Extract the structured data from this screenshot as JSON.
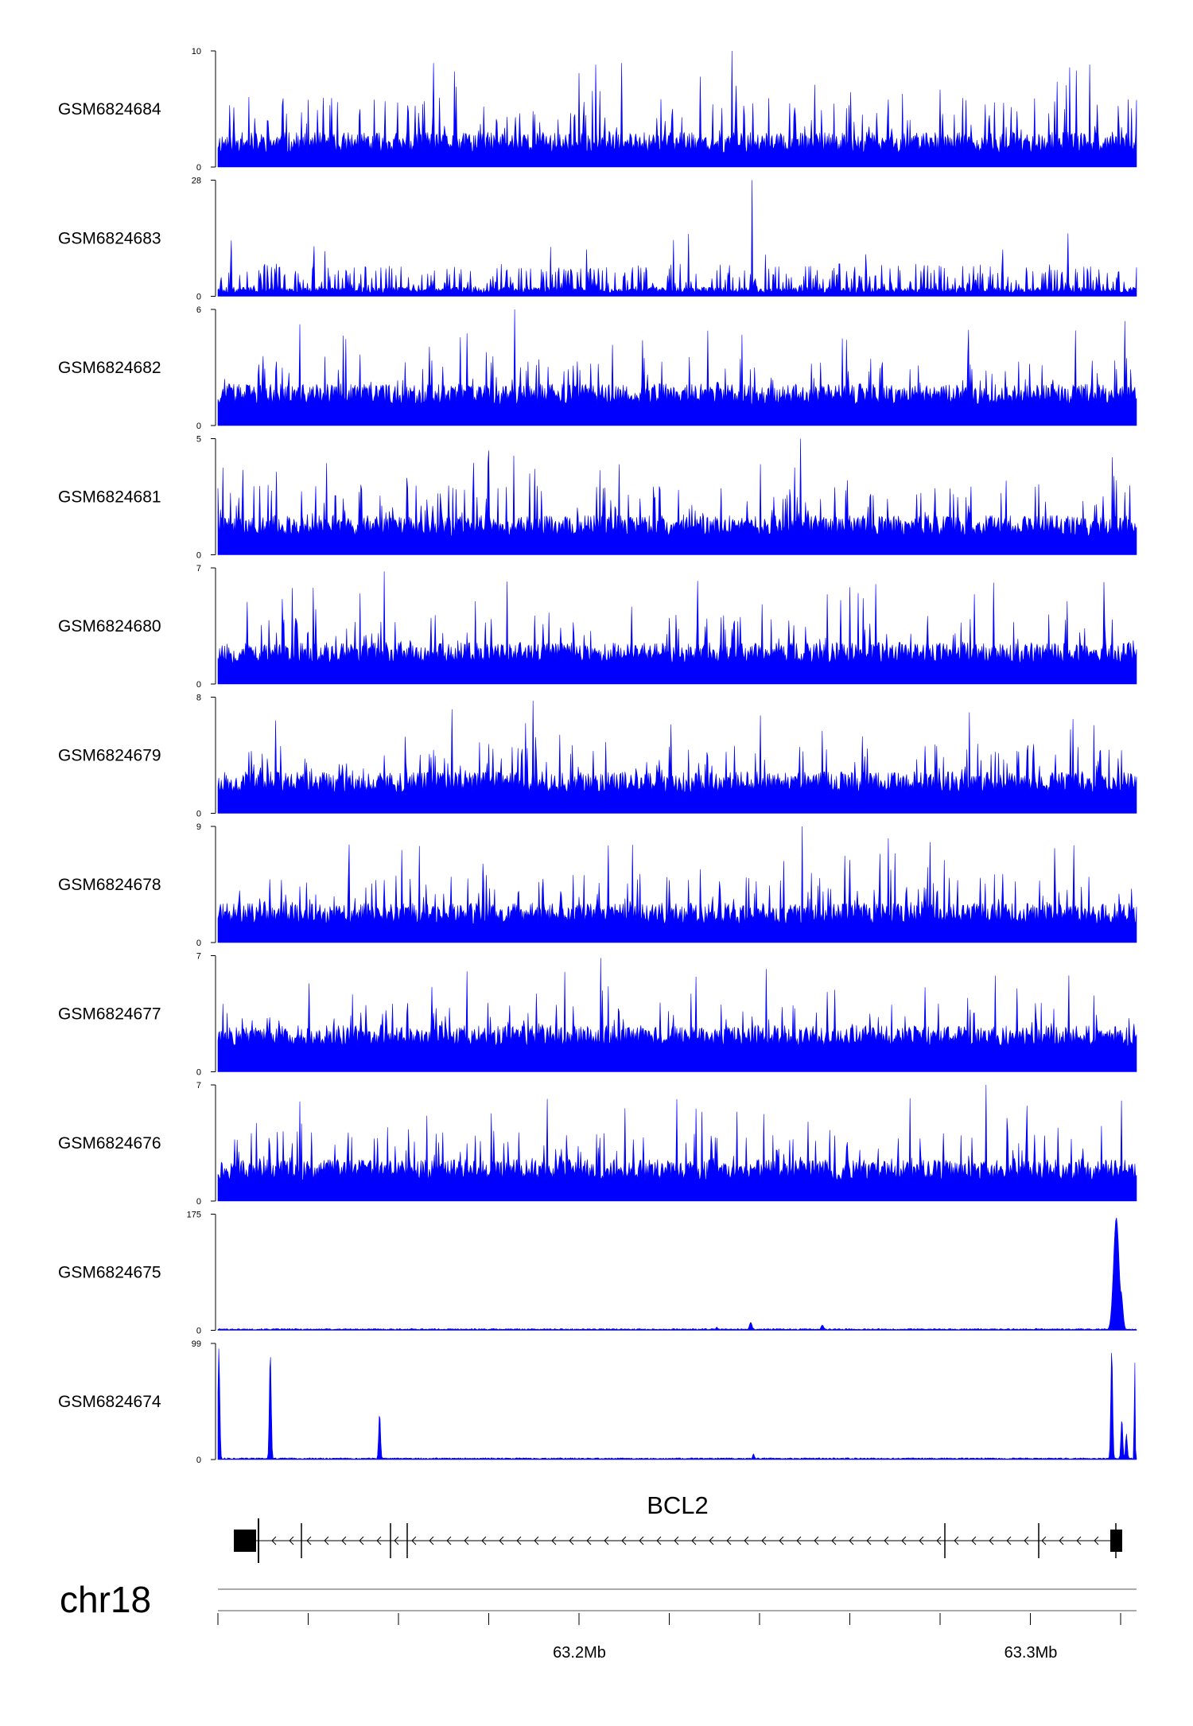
{
  "chart_data": {
    "type": "area",
    "chromosome": "chr18",
    "gene": {
      "name": "BCL2",
      "strand": "-"
    },
    "x_ticks": [
      {
        "value": 63.2,
        "label": "63.2Mb"
      },
      {
        "value": 63.3,
        "label": "63.3Mb"
      }
    ],
    "color": "#0000ff",
    "tracks": [
      {
        "name": "GSM6824684",
        "ymin": 0,
        "ymax": 10,
        "ymin_label": "0",
        "ymax_label": "10",
        "profile": "noise",
        "seed": 11,
        "baseline": 0.12,
        "peak_max": 1.0
      },
      {
        "name": "GSM6824683",
        "ymin": 0,
        "ymax": 28,
        "ymin_label": "0",
        "ymax_label": "28",
        "profile": "sparse",
        "seed": 23,
        "baseline": 0.08,
        "peak_max": 1.0
      },
      {
        "name": "GSM6824682",
        "ymin": 0,
        "ymax": 6,
        "ymin_label": "0",
        "ymax_label": "6",
        "profile": "noise",
        "seed": 37,
        "baseline": 0.18,
        "peak_max": 1.0
      },
      {
        "name": "GSM6824681",
        "ymin": 0,
        "ymax": 5,
        "ymin_label": "0",
        "ymax_label": "5",
        "profile": "noise",
        "seed": 41,
        "baseline": 0.16,
        "peak_max": 1.0
      },
      {
        "name": "GSM6824680",
        "ymin": 0,
        "ymax": 7,
        "ymin_label": "0",
        "ymax_label": "7",
        "profile": "noise",
        "seed": 53,
        "baseline": 0.18,
        "peak_max": 0.97
      },
      {
        "name": "GSM6824679",
        "ymin": 0,
        "ymax": 8,
        "ymin_label": "0",
        "ymax_label": "8",
        "profile": "noise",
        "seed": 67,
        "baseline": 0.18,
        "peak_max": 0.97
      },
      {
        "name": "GSM6824678",
        "ymin": 0,
        "ymax": 9,
        "ymin_label": "0",
        "ymax_label": "9",
        "profile": "noise",
        "seed": 71,
        "baseline": 0.16,
        "peak_max": 1.0
      },
      {
        "name": "GSM6824677",
        "ymin": 0,
        "ymax": 7,
        "ymin_label": "0",
        "ymax_label": "7",
        "profile": "noise",
        "seed": 83,
        "baseline": 0.22,
        "peak_max": 0.98
      },
      {
        "name": "GSM6824676",
        "ymin": 0,
        "ymax": 7,
        "ymin_label": "0",
        "ymax_label": "7",
        "profile": "noise",
        "seed": 97,
        "baseline": 0.18,
        "peak_max": 1.0
      },
      {
        "name": "GSM6824675",
        "ymin": 0,
        "ymax": 175,
        "ymin_label": "0",
        "ymax_label": "175",
        "profile": "peaks",
        "seed": 101,
        "peaks": [
          {
            "pos": 0.211,
            "height": 3,
            "width": 0.002
          },
          {
            "pos": 0.543,
            "height": 5,
            "width": 0.002
          },
          {
            "pos": 0.58,
            "height": 12,
            "width": 0.003
          },
          {
            "pos": 0.658,
            "height": 8,
            "width": 0.003
          },
          {
            "pos": 0.891,
            "height": 3,
            "width": 0.002
          },
          {
            "pos": 0.978,
            "height": 170,
            "width": 0.006
          },
          {
            "pos": 0.983,
            "height": 60,
            "width": 0.004
          }
        ]
      },
      {
        "name": "GSM6824674",
        "ymin": 0,
        "ymax": 99,
        "ymin_label": "0",
        "ymax_label": "99",
        "profile": "peaks",
        "seed": 113,
        "peaks": [
          {
            "pos": 0.001,
            "height": 95,
            "width": 0.002
          },
          {
            "pos": 0.057,
            "height": 92,
            "width": 0.002
          },
          {
            "pos": 0.176,
            "height": 40,
            "width": 0.002
          },
          {
            "pos": 0.583,
            "height": 5,
            "width": 0.002
          },
          {
            "pos": 0.973,
            "height": 95,
            "width": 0.002
          },
          {
            "pos": 0.984,
            "height": 35,
            "width": 0.002
          },
          {
            "pos": 0.989,
            "height": 22,
            "width": 0.002
          },
          {
            "pos": 0.998,
            "height": 88,
            "width": 0.001
          }
        ]
      }
    ]
  }
}
